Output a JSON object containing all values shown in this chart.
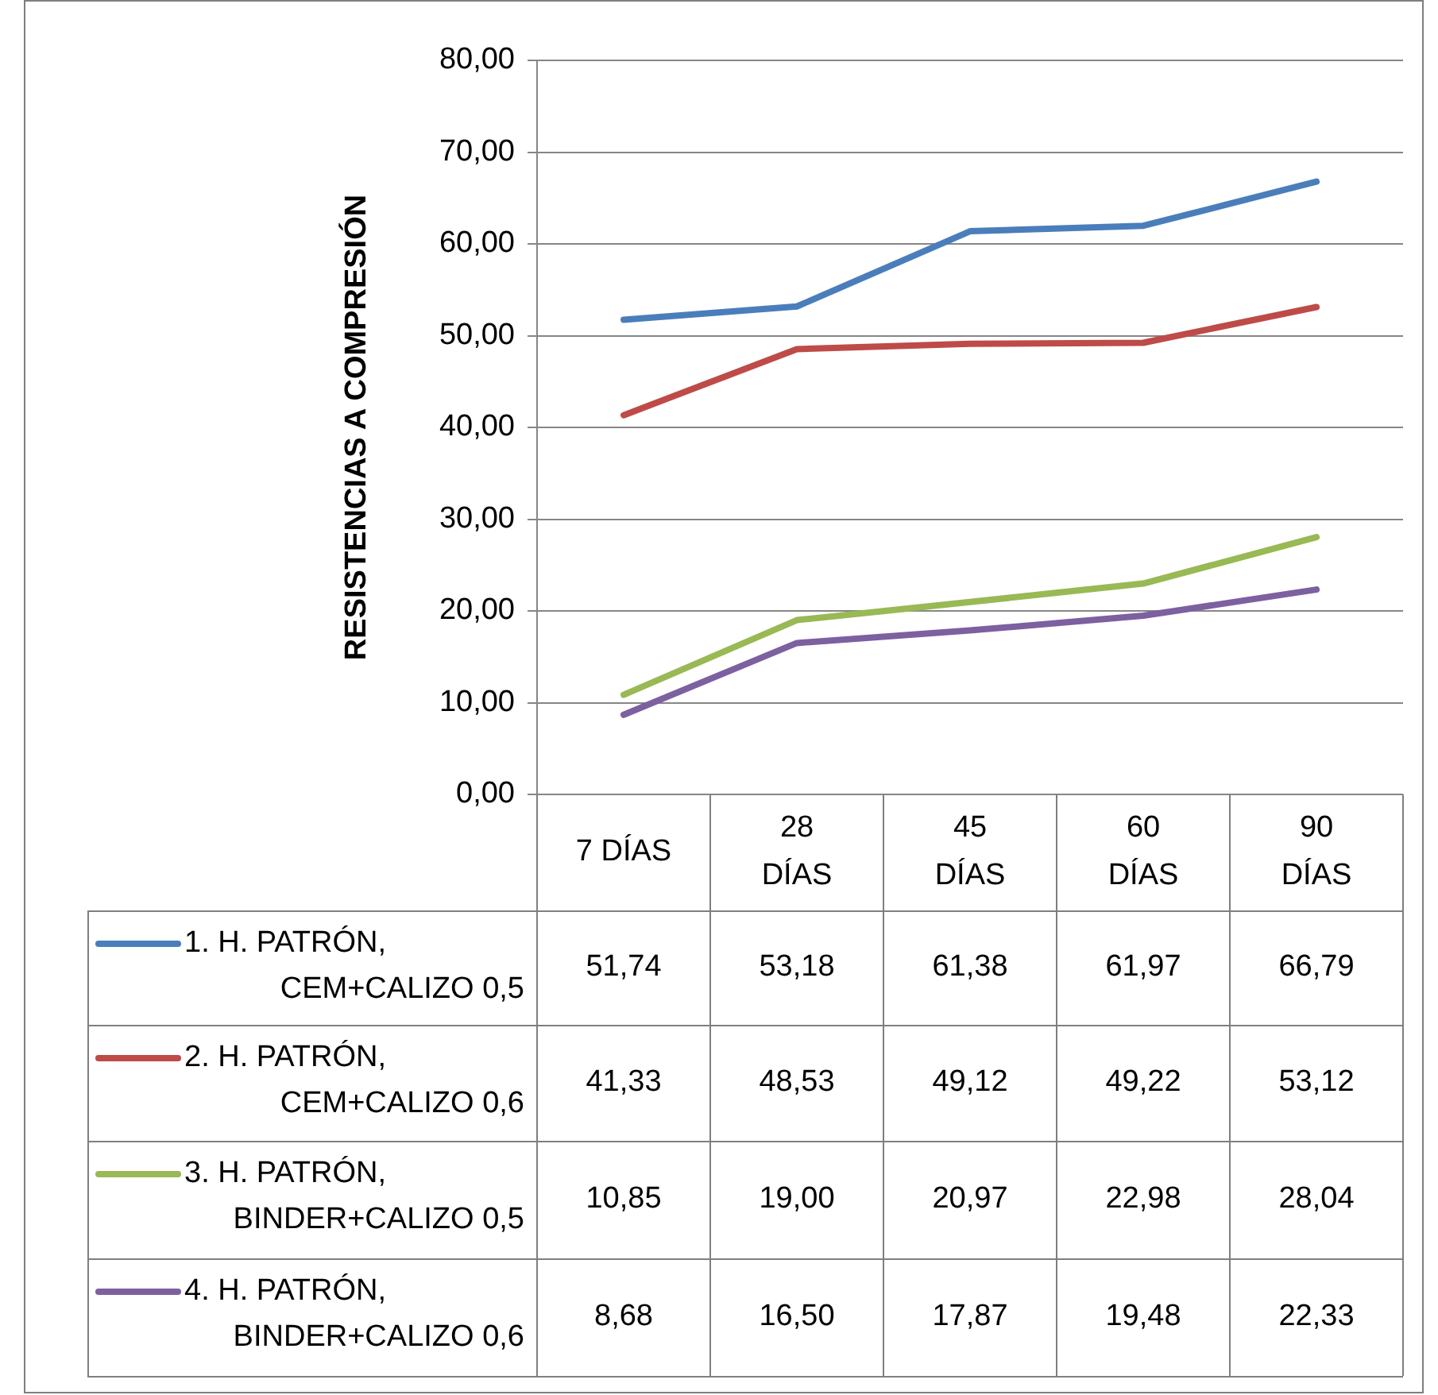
{
  "chart_data": {
    "type": "line",
    "ylabel": "RESISTENCIAS A COMPRESIÓN",
    "categories": [
      "7 DÍAS",
      "28 DÍAS",
      "45 DÍAS",
      "60 DÍAS",
      "90 DÍAS"
    ],
    "series": [
      {
        "name": "1. H. PATRÓN, CEM+CALIZO 0,5",
        "color": "#4a7ebb",
        "values": [
          51.74,
          53.18,
          61.38,
          61.97,
          66.79
        ],
        "value_labels": [
          "51,74",
          "53,18",
          "61,38",
          "61,97",
          "66,79"
        ]
      },
      {
        "name": "2. H. PATRÓN, CEM+CALIZO 0,6",
        "color": "#be4b48",
        "values": [
          41.33,
          48.53,
          49.12,
          49.22,
          53.12
        ],
        "value_labels": [
          "41,33",
          "48,53",
          "49,12",
          "49,22",
          "53,12"
        ]
      },
      {
        "name": "3. H. PATRÓN, BINDER+CALIZO 0,5",
        "color": "#98b954",
        "values": [
          10.85,
          19.0,
          20.97,
          22.98,
          28.04
        ],
        "value_labels": [
          "10,85",
          "19,00",
          "20,97",
          "22,98",
          "28,04"
        ]
      },
      {
        "name": "4. H. PATRÓN, BINDER+CALIZO 0,6",
        "color": "#7d60a0",
        "values": [
          8.68,
          16.5,
          17.87,
          19.48,
          22.33
        ],
        "value_labels": [
          "8,68",
          "16,50",
          "17,87",
          "19,48",
          "22,33"
        ]
      }
    ],
    "ylim": [
      0,
      80
    ],
    "yticks": [
      {
        "value": 0,
        "label": "0,00"
      },
      {
        "value": 10,
        "label": "10,00"
      },
      {
        "value": 20,
        "label": "20,00"
      },
      {
        "value": 30,
        "label": "30,00"
      },
      {
        "value": 40,
        "label": "40,00"
      },
      {
        "value": 50,
        "label": "50,00"
      },
      {
        "value": 60,
        "label": "60,00"
      },
      {
        "value": 70,
        "label": "70,00"
      },
      {
        "value": 80,
        "label": "80,00"
      }
    ],
    "grid": "y",
    "legend": "bottom",
    "marker": "none",
    "line_style": "solid"
  }
}
